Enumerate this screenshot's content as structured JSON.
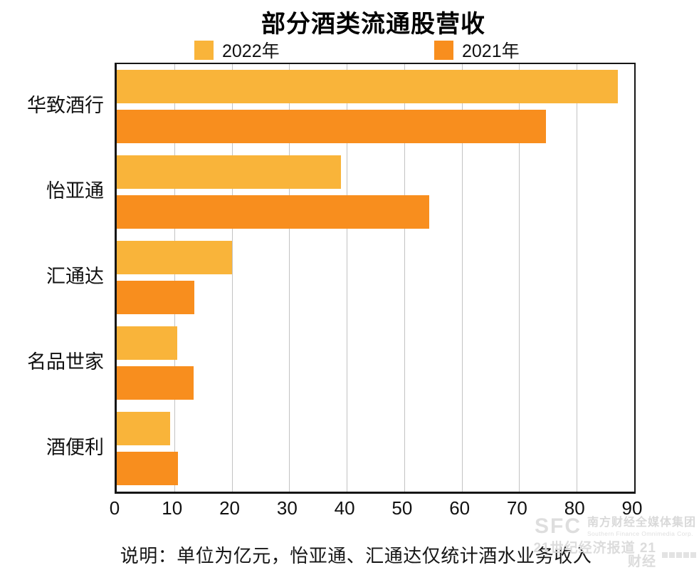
{
  "title": "部分酒类流通股营收",
  "legend": [
    {
      "label": "2022年",
      "color": "#F9B43A"
    },
    {
      "label": "2021年",
      "color": "#F88E1E"
    }
  ],
  "chart_data": {
    "type": "bar",
    "orientation": "horizontal",
    "title": "部分酒类流通股营收",
    "unit": "亿元",
    "categories": [
      "华致酒行",
      "怡亚通",
      "汇通达",
      "名品世家",
      "酒便利"
    ],
    "series": [
      {
        "name": "2022年",
        "color": "#F9B43A",
        "values": [
          87.1,
          39.0,
          20.1,
          10.5,
          9.3
        ]
      },
      {
        "name": "2021年",
        "color": "#F88E1E",
        "values": [
          74.6,
          54.3,
          13.5,
          13.4,
          10.7
        ]
      }
    ],
    "xlim": [
      0,
      90
    ],
    "xticks": [
      0,
      10,
      20,
      30,
      40,
      50,
      60,
      70,
      80,
      90
    ],
    "grid": "vertical",
    "legend_position": "top"
  },
  "footer": {
    "note": "说明：单位为亿元，怡亚通、汇通达仅统计酒水业务收入"
  },
  "watermark": {
    "diagonal": "21世纪经济报道",
    "logo_sfc": "SFC",
    "logo_cn": "南方财经全媒体集团",
    "logo_en": "Southern Finance Omnimedia Corp.",
    "logo_line2": "21世纪经济报道 21财经"
  }
}
